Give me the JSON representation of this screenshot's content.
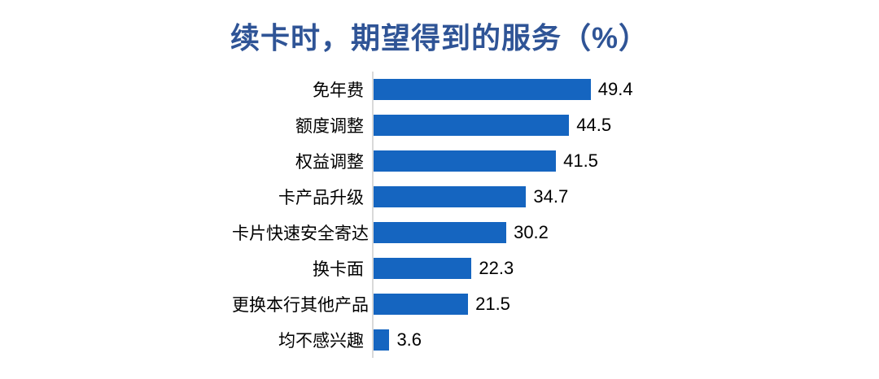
{
  "title": "续卡时，期望得到的服务（%）",
  "colors": {
    "title_text": "#2F5496",
    "bar_fill": "#1565C0",
    "axis_line": "#D9D9D9",
    "category_text": "#000000",
    "value_text": "#000000"
  },
  "chart_data": {
    "type": "bar",
    "orientation": "horizontal",
    "title": "续卡时，期望得到的服务（%）",
    "categories": [
      "免年费",
      "额度调整",
      "权益调整",
      "卡产品升级",
      "卡片快速安全寄达",
      "换卡面",
      "更换本行其他产品",
      "均不感兴趣"
    ],
    "values": [
      49.4,
      44.5,
      41.5,
      34.7,
      30.2,
      22.3,
      21.5,
      3.6
    ],
    "value_labels": [
      "49.4",
      "44.5",
      "41.5",
      "34.7",
      "30.2",
      "22.3",
      "21.5",
      "3.6"
    ],
    "xlabel": "",
    "ylabel": "",
    "xlim": [
      0,
      55
    ],
    "grid": "off",
    "legend": "none",
    "value_labels_position": "outside-end"
  }
}
